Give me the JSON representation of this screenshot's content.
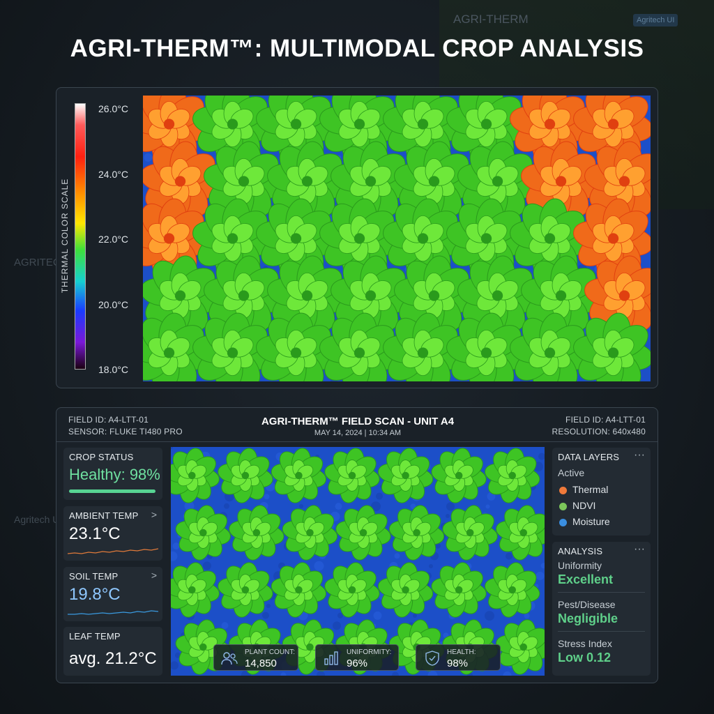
{
  "background": {
    "brand": "AGRI-THERM",
    "badge": "Agritech UI",
    "side": "AGRITECH",
    "side_lower": "Agritech UI"
  },
  "title": "AGRI-THERM™: MULTIMODAL CROP ANALYSIS",
  "thermal_panel": {
    "scale_title": "THERMAL COLOR SCALE",
    "scale_labels": [
      "26.0°C",
      "24.0°C",
      "22.0°C",
      "20.0°C",
      "18.0°C"
    ]
  },
  "scan_panel": {
    "header": {
      "left": [
        "FIELD ID: A4-LTT-01",
        "SENSOR: FLUKE TI480 PRO"
      ],
      "title": "AGRI-THERM™ FIELD SCAN - UNIT A4",
      "date": "MAY 14, 2024 | 10:34 AM",
      "right": [
        "FIELD ID: A4-LTT-01",
        "RESOLUTION: 640x480"
      ]
    },
    "cards": [
      {
        "label": "CROP STATUS",
        "value": "Healthy: 98%"
      },
      {
        "label": "AMBIENT TEMP",
        "value": "23.1°C"
      },
      {
        "label": "SOIL TEMP",
        "value": "19.8°C"
      },
      {
        "label": "LEAF TEMP",
        "value": "avg. 21.2°C"
      }
    ],
    "stats": [
      {
        "label": "PLANT COUNT:",
        "value": "14,850"
      },
      {
        "label": "UNIFORMITY:",
        "value": "96%"
      },
      {
        "label": "HEALTH:",
        "value": "98%"
      }
    ],
    "data_layers": {
      "title": "DATA LAYERS",
      "subtitle": "Active",
      "items": [
        "Thermal",
        "NDVI",
        "Moisture"
      ]
    },
    "analysis": {
      "title": "ANALYSIS",
      "items": [
        {
          "label": "Uniformity",
          "value": "Excellent"
        },
        {
          "label": "Pest/Disease",
          "value": "Negligible"
        },
        {
          "label": "Stress Index",
          "value": "Low 0.12"
        }
      ]
    }
  }
}
